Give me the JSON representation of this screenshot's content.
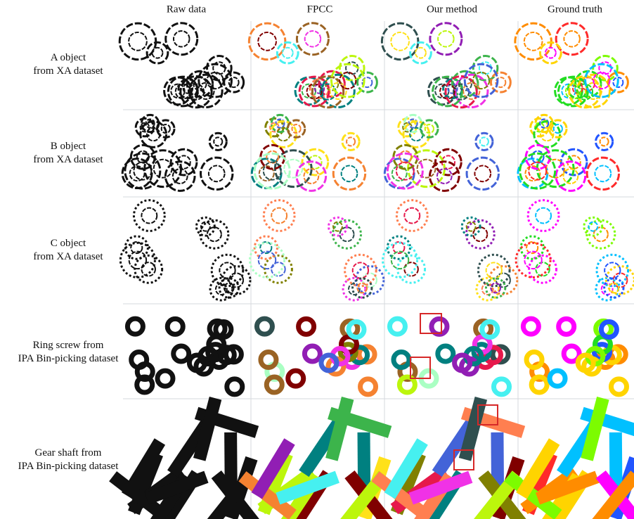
{
  "header": {
    "columns": [
      "Raw data",
      "FPCC",
      "Our method",
      "Ground truth"
    ]
  },
  "rows": [
    {
      "label": [
        "A object",
        "from XA dataset"
      ]
    },
    {
      "label": [
        "B object",
        "from XA dataset"
      ]
    },
    {
      "label": [
        "C object",
        "from XA dataset"
      ]
    },
    {
      "label": [
        "Ring screw from",
        "IPA Bin-picking dataset"
      ]
    },
    {
      "label": [
        "Gear shaft from",
        "IPA Bin-picking dataset"
      ]
    }
  ]
}
